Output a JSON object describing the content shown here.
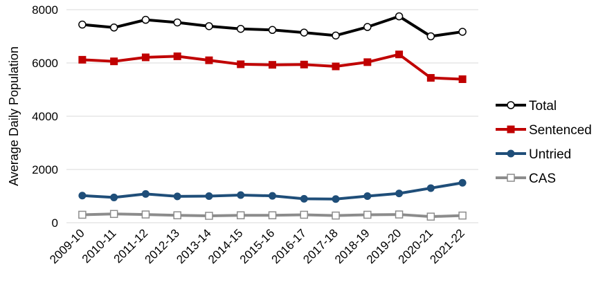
{
  "chart_data": {
    "type": "line",
    "title": "",
    "xlabel": "",
    "ylabel": "Average Daily Population",
    "ylim": [
      0,
      8000
    ],
    "yticks": [
      "0",
      "2000",
      "4000",
      "6000",
      "8000"
    ],
    "grid": "horizontal",
    "legend_position": "right",
    "categories": [
      "2009-10",
      "2010-11",
      "2011-12",
      "2012-13",
      "2013-14",
      "2014-15",
      "2015-16",
      "2016-17",
      "2017-18",
      "2018-19",
      "2019-20",
      "2020-21",
      "2021-22"
    ],
    "series": [
      {
        "name": "Total",
        "color": "#000000",
        "marker": "circle-open",
        "values": [
          7440,
          7330,
          7620,
          7520,
          7380,
          7280,
          7240,
          7140,
          7030,
          7350,
          7750,
          7000,
          7170
        ]
      },
      {
        "name": "Sentenced",
        "color": "#c00000",
        "marker": "square-filled",
        "values": [
          6120,
          6060,
          6210,
          6250,
          6100,
          5950,
          5930,
          5940,
          5870,
          6030,
          6320,
          5440,
          5390
        ]
      },
      {
        "name": "Untried",
        "color": "#1f4e79",
        "marker": "circle-filled",
        "values": [
          1020,
          950,
          1080,
          990,
          1000,
          1040,
          1010,
          900,
          890,
          1000,
          1100,
          1300,
          1500
        ]
      },
      {
        "name": "CAS",
        "color": "#8c8c8c",
        "marker": "square-open",
        "values": [
          300,
          330,
          310,
          280,
          260,
          280,
          280,
          300,
          270,
          300,
          310,
          230,
          270
        ]
      }
    ]
  }
}
